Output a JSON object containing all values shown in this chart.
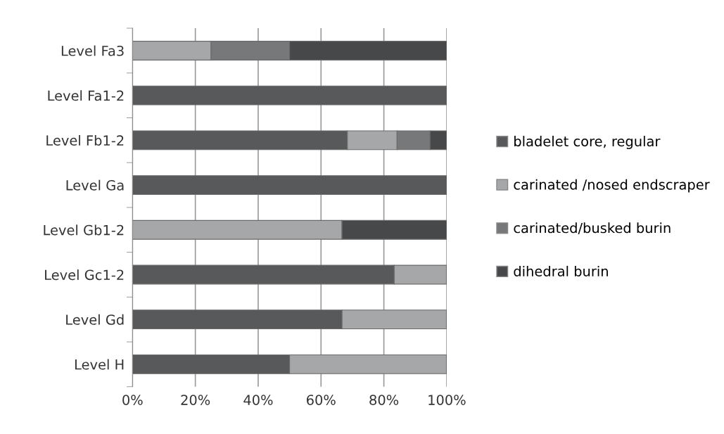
{
  "chart_data": {
    "type": "bar",
    "orientation": "horizontal",
    "stacked": true,
    "categories": [
      "Level Fa3",
      "Level Fa1-2",
      "Level Fb1-2",
      "Level Ga",
      "Level Gb1-2",
      "Level Gc1-2",
      "Level Gd",
      "Level H"
    ],
    "series": [
      {
        "name": "bladelet core, regular",
        "color": "#58595b",
        "values": [
          0,
          100,
          68.4,
          100,
          0,
          83.3,
          66.7,
          50
        ]
      },
      {
        "name": "carinated /nosed endscraper",
        "color": "#a6a7a9",
        "values": [
          25,
          0,
          15.8,
          0,
          66.7,
          16.7,
          33.3,
          50
        ]
      },
      {
        "name": "carinated/busked burin",
        "color": "#77787a",
        "values": [
          25,
          0,
          10.5,
          0,
          0,
          0,
          0,
          0
        ]
      },
      {
        "name": "dihedral burin",
        "color": "#47484a",
        "values": [
          50,
          0,
          5.3,
          0,
          33.3,
          0,
          0,
          0
        ]
      }
    ],
    "xlim": [
      0,
      100
    ],
    "xticks": [
      {
        "value": 0,
        "label": "0%"
      },
      {
        "value": 20,
        "label": "20%"
      },
      {
        "value": 40,
        "label": "40%"
      },
      {
        "value": 60,
        "label": "60%"
      },
      {
        "value": 80,
        "label": "80%"
      },
      {
        "value": 100,
        "label": "100%"
      }
    ],
    "grid": "x",
    "legend": "right"
  }
}
